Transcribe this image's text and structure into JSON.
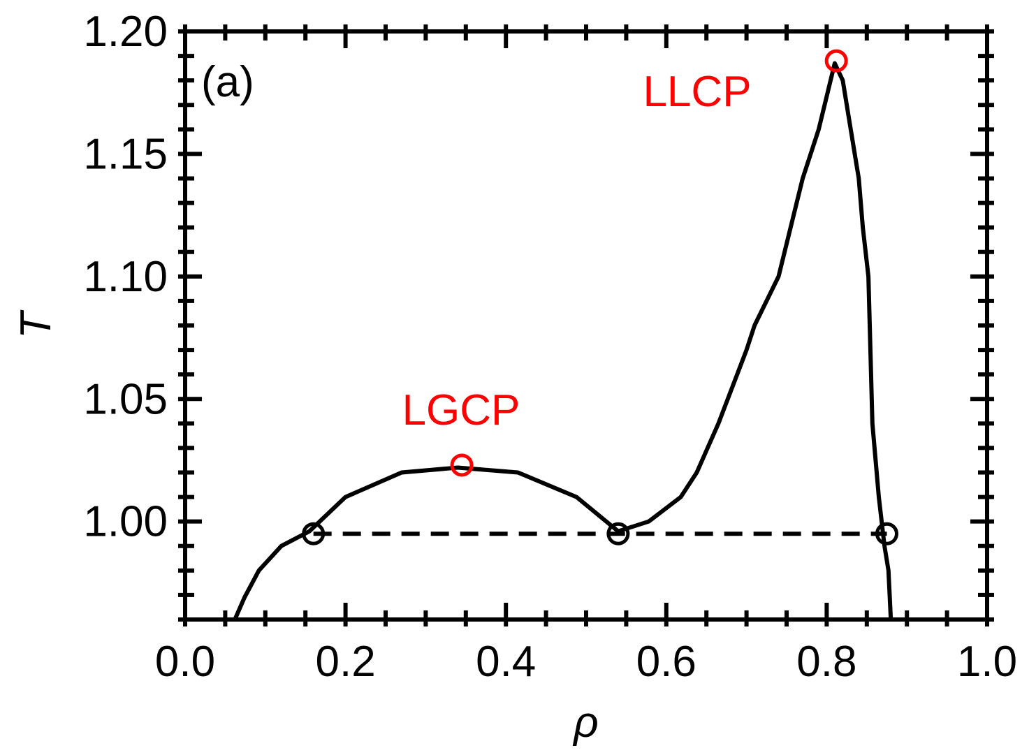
{
  "chart_data": {
    "type": "line",
    "panel_label": "(a)",
    "xlabel": "ρ",
    "ylabel": "T",
    "xlim": [
      0.0,
      1.0
    ],
    "ylim": [
      0.96,
      1.2
    ],
    "x_ticks": [
      0.0,
      0.2,
      0.4,
      0.6,
      0.8,
      1.0
    ],
    "x_tick_labels": [
      "0.0",
      "0.2",
      "0.4",
      "0.6",
      "0.8",
      "1.0"
    ],
    "y_ticks": [
      1.0,
      1.05,
      1.1,
      1.15,
      1.2
    ],
    "y_tick_labels": [
      "1.00",
      "1.05",
      "1.10",
      "1.15",
      "1.20"
    ],
    "x_minor_step": 0.05,
    "y_minor_step": 0.01,
    "grid": false,
    "colors": {
      "curve": "#000000",
      "critical_points": "#ff0000",
      "coexistence": "#000000"
    },
    "series": [
      {
        "style": "solid",
        "x": [
          0.062,
          0.074,
          0.092,
          0.12,
          0.155,
          0.2,
          0.27,
          0.34,
          0.415,
          0.488,
          0.54,
          0.578,
          0.618,
          0.638,
          0.665,
          0.7,
          0.71,
          0.74,
          0.77,
          0.79,
          0.81,
          0.82,
          0.83,
          0.84,
          0.845,
          0.852,
          0.857,
          0.865,
          0.872,
          0.877,
          0.88
        ],
        "y": [
          0.96,
          0.969,
          0.98,
          0.99,
          0.996,
          1.01,
          1.02,
          1.022,
          1.02,
          1.01,
          0.996,
          1.0,
          1.01,
          1.02,
          1.04,
          1.07,
          1.08,
          1.1,
          1.14,
          1.16,
          1.187,
          1.18,
          1.16,
          1.14,
          1.12,
          1.1,
          1.04,
          1.01,
          0.99,
          0.98,
          0.96
        ]
      }
    ],
    "coexistence_line": {
      "style": "dashed",
      "y": 0.995,
      "x_start": 0.16,
      "x_end": 0.875,
      "points_x": [
        0.16,
        0.54,
        0.875
      ]
    },
    "critical_points": [
      {
        "label": "LGCP",
        "x": 0.345,
        "y": 1.023
      },
      {
        "label": "LLCP",
        "x": 0.812,
        "y": 1.188
      }
    ]
  }
}
